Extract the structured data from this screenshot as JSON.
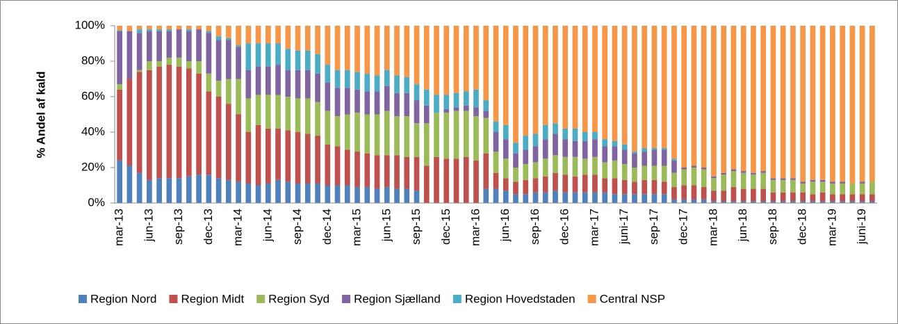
{
  "chart_data": {
    "type": "stacked_bar_100",
    "y_label": "% Andel af kald",
    "categories": [
      "mar-13",
      null,
      null,
      "jun-13",
      null,
      null,
      "sep-13",
      null,
      null,
      "dec-13",
      null,
      null,
      "mar-14",
      null,
      null,
      "jun-14",
      null,
      null,
      "sep-14",
      null,
      null,
      "dec-14",
      null,
      null,
      "mar-15",
      null,
      null,
      "jun-15",
      null,
      null,
      "sep-15",
      null,
      null,
      "dec-15",
      null,
      null,
      "mar-16",
      null,
      null,
      "jun-16",
      null,
      null,
      "sep-16",
      null,
      null,
      "dec-16",
      null,
      null,
      "mar-17",
      null,
      null,
      "juni-17",
      null,
      null,
      "sep-17",
      null,
      null,
      "dec-17",
      null,
      null,
      "mar-18",
      null,
      null,
      "jun-18",
      null,
      null,
      "sep-18",
      null,
      null,
      "dec-18",
      null,
      null,
      "mar-19",
      null,
      null,
      "juni-19",
      null
    ],
    "series": [
      {
        "name": "Region Nord",
        "color": "#4F81BD",
        "values": [
          24,
          21,
          17,
          13,
          14,
          14,
          14,
          15,
          16,
          16,
          14,
          13,
          12,
          11,
          10,
          11,
          13,
          12,
          11,
          11,
          11,
          10,
          10,
          10,
          9,
          9,
          8,
          9,
          8,
          8,
          7,
          0,
          0,
          0,
          0,
          0,
          0,
          8,
          8,
          7,
          5,
          5,
          6,
          6,
          7,
          6,
          6,
          6,
          6,
          6,
          5,
          5,
          5,
          5,
          5,
          5,
          2,
          2,
          2,
          2,
          1,
          1,
          1,
          1,
          1,
          1,
          1,
          1,
          1,
          1,
          1,
          1,
          1,
          1,
          1,
          1,
          1
        ]
      },
      {
        "name": "Region Midt",
        "color": "#C0504D",
        "values": [
          40,
          49,
          57,
          62,
          63,
          64,
          63,
          61,
          57,
          47,
          46,
          43,
          38,
          29,
          34,
          31,
          29,
          29,
          29,
          28,
          27,
          23,
          22,
          20,
          20,
          19,
          19,
          18,
          19,
          18,
          19,
          21,
          26,
          25,
          25,
          26,
          24,
          20,
          9,
          7,
          7,
          8,
          8,
          9,
          10,
          10,
          9,
          10,
          10,
          8,
          9,
          8,
          7,
          8,
          8,
          7,
          7,
          8,
          8,
          7,
          6,
          6,
          8,
          7,
          7,
          7,
          5,
          5,
          5,
          5,
          4,
          5,
          4,
          4,
          4,
          4,
          4
        ]
      },
      {
        "name": "Region Syd",
        "color": "#9BBB59",
        "values": [
          3,
          0,
          1,
          5,
          3,
          4,
          5,
          4,
          7,
          10,
          9,
          14,
          20,
          19,
          17,
          19,
          19,
          19,
          19,
          20,
          19,
          19,
          17,
          20,
          22,
          22,
          23,
          25,
          22,
          23,
          19,
          24,
          25,
          26,
          27,
          26,
          25,
          20,
          12,
          11,
          8,
          9,
          9,
          10,
          10,
          10,
          11,
          9,
          10,
          9,
          10,
          9,
          8,
          8,
          8,
          9,
          8,
          9,
          10,
          10,
          7,
          9,
          9,
          9,
          8,
          9,
          7,
          7,
          7,
          5,
          7,
          6,
          6,
          6,
          6,
          6,
          7
        ]
      },
      {
        "name": "Region Sjælland",
        "color": "#8064A2",
        "values": [
          30,
          27,
          21,
          17,
          17,
          15,
          16,
          17,
          18,
          23,
          23,
          22,
          18,
          16,
          16,
          16,
          17,
          15,
          16,
          16,
          16,
          16,
          16,
          15,
          13,
          13,
          13,
          14,
          13,
          13,
          13,
          10,
          0,
          2,
          2,
          3,
          5,
          4,
          11,
          11,
          8,
          8,
          9,
          11,
          12,
          10,
          9,
          10,
          10,
          9,
          8,
          8,
          8,
          8,
          9,
          9,
          7,
          1,
          1,
          1,
          1,
          1,
          1,
          1,
          1,
          1,
          1,
          1,
          1,
          1,
          1,
          1,
          1,
          1,
          0,
          1,
          0
        ]
      },
      {
        "name": "Region Hovedstaden",
        "color": "#4BACC6",
        "values": [
          0.5,
          0,
          2,
          1,
          1,
          1,
          0,
          1,
          0,
          1,
          2,
          1,
          1,
          15,
          13,
          13,
          12,
          12,
          11,
          11,
          11,
          10,
          10,
          10,
          10,
          10,
          9,
          9,
          10,
          9,
          9,
          9,
          10,
          8,
          8,
          8,
          10,
          6,
          6,
          8,
          6,
          8,
          7,
          8,
          6,
          6,
          7,
          5,
          4,
          4,
          3,
          3,
          1,
          2,
          1,
          1,
          1,
          0,
          0,
          0,
          0,
          0,
          0,
          0,
          0,
          0,
          0,
          0,
          0,
          0,
          0,
          0,
          0,
          0,
          0,
          0,
          0
        ]
      },
      {
        "name": "Central NSP",
        "color": "#F79646",
        "values": [
          2.5,
          3,
          2,
          2,
          2,
          2,
          2,
          2,
          2,
          3,
          6,
          7,
          11,
          10,
          10,
          10,
          10,
          13,
          14,
          14,
          16,
          22,
          25,
          25,
          26,
          27,
          28,
          25,
          28,
          29,
          33,
          36,
          39,
          39,
          38,
          37,
          36,
          42,
          54,
          56,
          66,
          62,
          61,
          56,
          55,
          58,
          58,
          60,
          60,
          64,
          65,
          67,
          71,
          69,
          69,
          69,
          75,
          80,
          79,
          80,
          85,
          83,
          81,
          82,
          83,
          82,
          86,
          86,
          86,
          88,
          87,
          87,
          88,
          88,
          89,
          88,
          88
        ]
      }
    ],
    "ylim": [
      0,
      100
    ],
    "yticks": [
      {
        "value": 0,
        "label": "0%"
      },
      {
        "value": 20,
        "label": "20%"
      },
      {
        "value": 40,
        "label": "40%"
      },
      {
        "value": 60,
        "label": "60%"
      },
      {
        "value": 80,
        "label": "80%"
      },
      {
        "value": 100,
        "label": "100%"
      }
    ],
    "legend": "bottom"
  }
}
